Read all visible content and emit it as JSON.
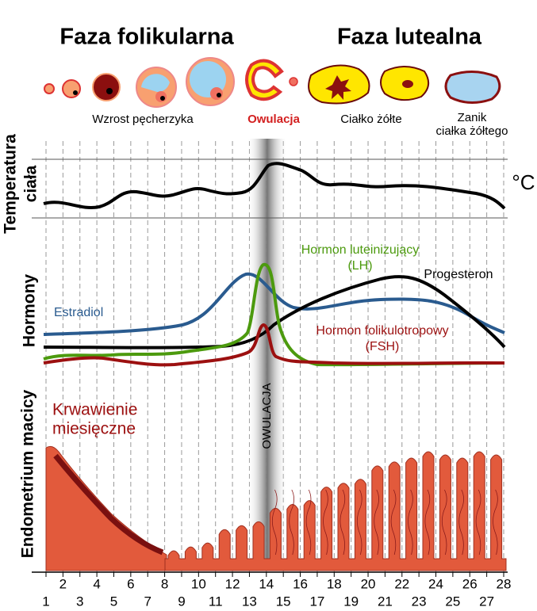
{
  "phases": {
    "follicular": "Faza folikularna",
    "luteal": "Faza lutealna"
  },
  "stages": {
    "growth": "Wzrost pęcherzyka",
    "ovulation": "Owulacja",
    "corpus_luteum": "Ciałko żółte",
    "regression": [
      "Zanik",
      "ciałka żółtego"
    ]
  },
  "panels": {
    "temperature": [
      "Temperatura",
      "ciała"
    ],
    "temperature_unit": "°C",
    "hormones": "Hormony",
    "endometrium": "Endometrium macicy"
  },
  "hormones": {
    "lh": [
      "Hormon luteinizujący",
      "(LH)"
    ],
    "progesterone": "Progesteron",
    "estradiol": "Estradiol",
    "fsh": [
      "Hormon folikulotropowy",
      "(FSH)"
    ]
  },
  "menstruation": [
    "Krwawienie",
    "miesięczne"
  ],
  "ovulation_band": "OWULACJA",
  "days": [
    1,
    2,
    3,
    4,
    5,
    6,
    7,
    8,
    9,
    10,
    11,
    12,
    13,
    14,
    15,
    16,
    17,
    18,
    19,
    20,
    21,
    22,
    23,
    24,
    25,
    26,
    27,
    28
  ]
}
